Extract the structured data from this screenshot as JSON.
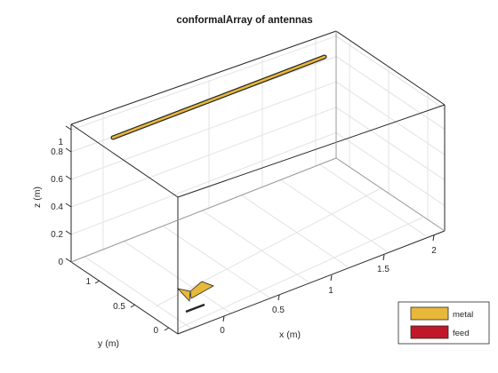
{
  "chart_data": {
    "type": "scatter",
    "title": "conformalArray of antennas",
    "xlabel": "x (m)",
    "ylabel": "y (m)",
    "zlabel": "z (m)",
    "x_ticks": [
      "0",
      "0.5",
      "1",
      "1.5",
      "2"
    ],
    "y_ticks": [
      "0",
      "0.5",
      "1"
    ],
    "z_ticks": [
      "0",
      "0.2",
      "0.4",
      "0.6",
      "0.8",
      "1"
    ],
    "grid": true,
    "legend_position": "bottom-right",
    "legend": [
      {
        "label": "metal",
        "color": "#e8b83a"
      },
      {
        "label": "feed",
        "color": "#c0182a"
      }
    ],
    "elements": [
      {
        "name": "bowtie-antenna",
        "position": [
          0,
          0,
          0
        ]
      },
      {
        "name": "dipole-antenna",
        "position": [
          1.2,
          1.2,
          1
        ]
      }
    ]
  }
}
